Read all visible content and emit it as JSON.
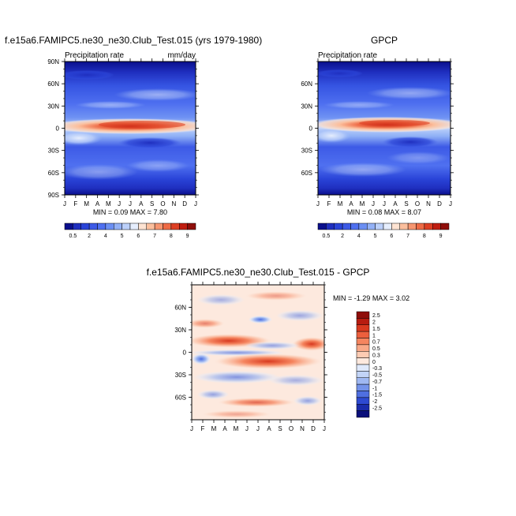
{
  "chart_data": [
    {
      "type": "heatmap",
      "title": "f.e15a6.FAMIPC5.ne30_ne30.Club_Test.015 (yrs 1979-1980)",
      "left_label": "Precipitation rate",
      "right_label": "mm/day",
      "x_tick_labels": [
        "J",
        "F",
        "M",
        "A",
        "M",
        "J",
        "J",
        "A",
        "S",
        "O",
        "N",
        "D",
        "J"
      ],
      "y_tick_labels": [
        "90N",
        "60N",
        "30N",
        "0",
        "30S",
        "60S",
        "90S"
      ],
      "y_tick_values": [
        90,
        60,
        30,
        0,
        -30,
        -60,
        -90
      ],
      "ylim": [
        -90,
        90
      ],
      "stats": {
        "min_label": "MIN =",
        "min": "0.09",
        "max_label": "MAX =",
        "max": "7.80"
      },
      "colorbar_labels": [
        "0.5",
        "2",
        "4",
        "5",
        "6",
        "7",
        "8",
        "9"
      ],
      "colorbar_levels": [
        0.5,
        1,
        2,
        3,
        4,
        4.5,
        5,
        5.5,
        6,
        6.5,
        7,
        7.5,
        8,
        8.5,
        9
      ],
      "colorbar_colors": [
        "#0a0f8c",
        "#1f2fbf",
        "#2a44d8",
        "#3d5ae6",
        "#4f70f0",
        "#6b8ff3",
        "#93b1f6",
        "#bcd0fa",
        "#e6eefd",
        "#fde3d2",
        "#fbbf9d",
        "#f69670",
        "#ee6a45",
        "#dd3f23",
        "#c01d10",
        "#8f0e0a"
      ]
    },
    {
      "type": "heatmap",
      "title": "GPCP",
      "left_label": "Precipitation rate",
      "x_tick_labels": [
        "J",
        "F",
        "M",
        "A",
        "M",
        "J",
        "J",
        "A",
        "S",
        "O",
        "N",
        "D",
        "J"
      ],
      "y_tick_labels": [
        "60N",
        "30N",
        "0",
        "30S",
        "60S"
      ],
      "y_tick_values": [
        60,
        30,
        0,
        -30,
        -60
      ],
      "ylim": [
        -90,
        90
      ],
      "stats": {
        "min_label": "MIN =",
        "min": "0.08",
        "max_label": "MAX =",
        "max": "8.07"
      },
      "colorbar_labels": [
        "0.5",
        "2",
        "4",
        "5",
        "6",
        "7",
        "8",
        "9"
      ],
      "colorbar_levels": [
        0.5,
        1,
        2,
        3,
        4,
        4.5,
        5,
        5.5,
        6,
        6.5,
        7,
        7.5,
        8,
        8.5,
        9
      ],
      "colorbar_colors": [
        "#0a0f8c",
        "#1f2fbf",
        "#2a44d8",
        "#3d5ae6",
        "#4f70f0",
        "#6b8ff3",
        "#93b1f6",
        "#bcd0fa",
        "#e6eefd",
        "#fde3d2",
        "#fbbf9d",
        "#f69670",
        "#ee6a45",
        "#dd3f23",
        "#c01d10",
        "#8f0e0a"
      ]
    },
    {
      "type": "heatmap",
      "title": "f.e15a6.FAMIPC5.ne30_ne30.Club_Test.015 - GPCP",
      "x_tick_labels": [
        "J",
        "F",
        "M",
        "A",
        "M",
        "J",
        "J",
        "A",
        "S",
        "O",
        "N",
        "D",
        "J"
      ],
      "y_tick_labels": [
        "60N",
        "30N",
        "0",
        "30S",
        "60S"
      ],
      "y_tick_values": [
        60,
        30,
        0,
        -30,
        -60
      ],
      "ylim": [
        -90,
        90
      ],
      "stats": {
        "min_label": "MIN =",
        "min": "-1.29",
        "max_label": "MAX =",
        "max": "3.02"
      },
      "colorbar_labels": [
        "2.5",
        "2",
        "1.5",
        "1",
        "0.7",
        "0.5",
        "0.3",
        "0",
        "-0.3",
        "-0.5",
        "-0.7",
        "-1",
        "-1.5",
        "-2",
        "-2.5"
      ],
      "colorbar_levels": [
        2.5,
        2,
        1.5,
        1,
        0.7,
        0.5,
        0.3,
        0,
        -0.3,
        -0.5,
        -0.7,
        -1,
        -1.5,
        -2,
        -2.5
      ],
      "colorbar_colors": [
        "#8f0e0a",
        "#b71c10",
        "#d8391f",
        "#ec5f3d",
        "#f5855f",
        "#f9a988",
        "#fccbb3",
        "#fde9de",
        "#dfe9fb",
        "#c2d4f7",
        "#9fb8f2",
        "#7493ea",
        "#4f6fe0",
        "#2e4ad1",
        "#1a2cab",
        "#0a0f7a"
      ]
    }
  ]
}
